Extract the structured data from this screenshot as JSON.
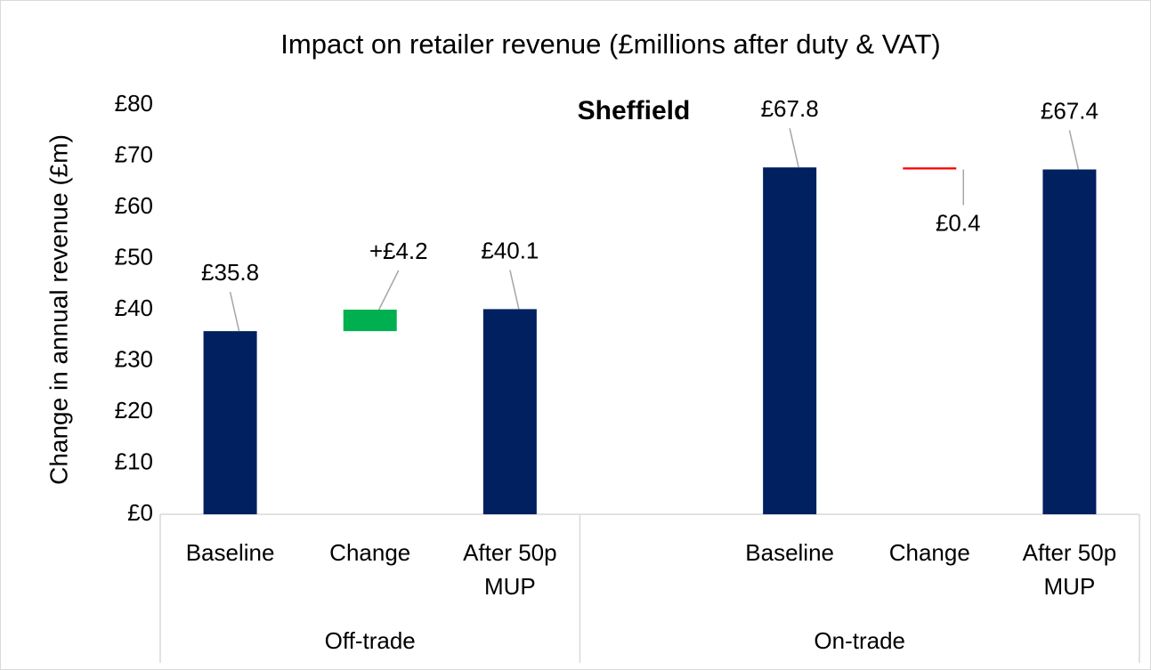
{
  "chart_data": {
    "type": "waterfall",
    "title": "Impact on retailer revenue (£millions after duty & VAT)",
    "subtitle": "Sheffield",
    "y_label": "Change in annual revenue (£m)",
    "categories": [
      "Baseline",
      "Change",
      "After 50p MUP",
      null,
      "Baseline",
      "Change",
      "After 50p MUP"
    ],
    "category_groups": [
      "Off-trade",
      "Off-trade",
      "Off-trade",
      "On-trade",
      "On-trade",
      "On-trade",
      "On-trade"
    ],
    "measure": [
      "absolute",
      "relative",
      "total",
      null,
      "absolute",
      "relative",
      "total"
    ],
    "values": [
      35.8,
      4.2,
      40.1,
      null,
      67.8,
      -0.4,
      67.4
    ],
    "value_labels": [
      "£35.8",
      "+£4.2",
      "£40.1",
      null,
      "£67.8",
      "£0.4",
      "£67.4"
    ],
    "color": "#002060",
    "increase_color": "#00b050",
    "decrease_color": "#ff0000",
    "ylim": [
      0,
      80
    ],
    "yticks": [
      {
        "value": 0,
        "label": "£0"
      },
      {
        "value": 10,
        "label": "£10"
      },
      {
        "value": 20,
        "label": "£20"
      },
      {
        "value": 30,
        "label": "£30"
      },
      {
        "value": 40,
        "label": "£40"
      },
      {
        "value": 50,
        "label": "£50"
      },
      {
        "value": 60,
        "label": "£60"
      },
      {
        "value": 70,
        "label": "£70"
      },
      {
        "value": 80,
        "label": "£80"
      }
    ],
    "grid": false
  }
}
